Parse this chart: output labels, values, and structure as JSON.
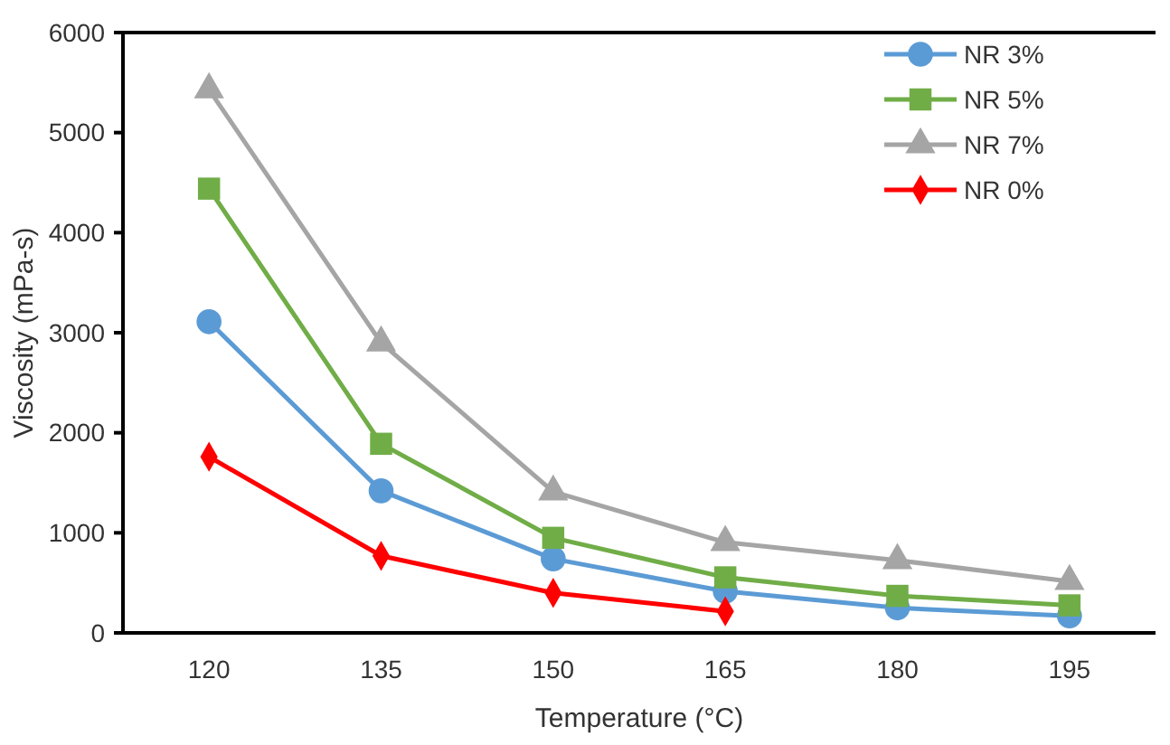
{
  "chart_data": {
    "type": "line",
    "xlabel": "Temperature (°C)",
    "ylabel": "Viscosity (mPa-s)",
    "categories": [
      "120",
      "135",
      "150",
      "165",
      "180",
      "195"
    ],
    "ylim": [
      0,
      6000
    ],
    "yticks": [
      0,
      1000,
      2000,
      3000,
      4000,
      5000,
      6000
    ],
    "grid": false,
    "legend": "top right",
    "series": [
      {
        "name": "NR 3%",
        "color": "#5b9bd5",
        "marker": "circle",
        "values": [
          3110,
          1420,
          740,
          415,
          250,
          170
        ]
      },
      {
        "name": "NR 5%",
        "color": "#70ad47",
        "marker": "square",
        "values": [
          4440,
          1890,
          950,
          555,
          370,
          275
        ]
      },
      {
        "name": "NR 7%",
        "color": "#a5a5a5",
        "marker": "triangle",
        "values": [
          5430,
          2900,
          1410,
          905,
          725,
          515
        ]
      },
      {
        "name": "NR 0%",
        "color": "#ff0000",
        "marker": "diamond",
        "values": [
          1760,
          770,
          400,
          215,
          null,
          null
        ]
      }
    ]
  }
}
